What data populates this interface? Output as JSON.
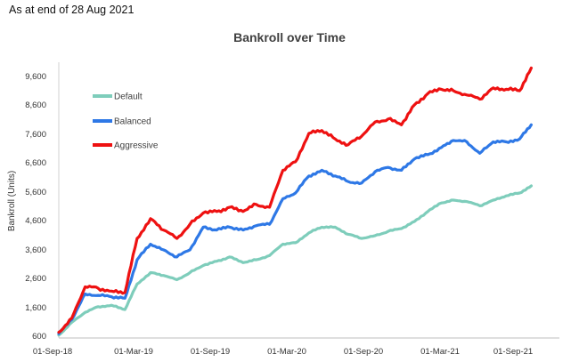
{
  "header": {
    "note": "As at end of 28 Aug 2021"
  },
  "chart_data": {
    "type": "line",
    "title": "Bankroll over Time",
    "xlabel": "",
    "ylabel": "Bankroll (Units)",
    "x_ticks": [
      "01-Sep-18",
      "01-Mar-19",
      "01-Sep-19",
      "01-Mar-20",
      "01-Sep-20",
      "01-Mar-21",
      "01-Sep-21"
    ],
    "y_ticks": [
      600,
      1600,
      2600,
      3600,
      4600,
      5600,
      6600,
      7600,
      8600,
      9600
    ],
    "xlim": [
      "2018-09-01",
      "2021-11-01"
    ],
    "ylim": [
      600,
      10300
    ],
    "grid": false,
    "legend_position": "top-left",
    "x_dates": [
      "2018-09-01",
      "2018-10-01",
      "2018-11-01",
      "2018-12-01",
      "2019-01-01",
      "2019-02-01",
      "2019-03-01",
      "2019-04-01",
      "2019-05-01",
      "2019-06-01",
      "2019-07-01",
      "2019-08-01",
      "2019-09-01",
      "2019-10-01",
      "2019-11-01",
      "2019-12-01",
      "2020-01-01",
      "2020-02-01",
      "2020-03-01",
      "2020-04-01",
      "2020-05-01",
      "2020-06-01",
      "2020-07-01",
      "2020-08-01",
      "2020-09-01",
      "2020-10-01",
      "2020-11-01",
      "2020-12-01",
      "2021-01-01",
      "2021-02-01",
      "2021-03-01",
      "2021-04-01",
      "2021-05-01",
      "2021-06-01",
      "2021-07-01",
      "2021-08-01",
      "2021-08-28"
    ],
    "series": [
      {
        "name": "Default",
        "color": "#7ecdbb",
        "values": [
          700,
          1150,
          1500,
          1700,
          1750,
          1600,
          2500,
          2900,
          2800,
          2650,
          2900,
          3150,
          3300,
          3450,
          3250,
          3350,
          3500,
          3900,
          3950,
          4300,
          4500,
          4500,
          4250,
          4100,
          4200,
          4350,
          4450,
          4700,
          5050,
          5350,
          5450,
          5400,
          5250,
          5450,
          5600,
          5700,
          5950
        ]
      },
      {
        "name": "Balanced",
        "color": "#2e78e6",
        "values": [
          750,
          1250,
          2150,
          2100,
          2050,
          2000,
          3350,
          3900,
          3700,
          3450,
          3700,
          4500,
          4400,
          4500,
          4400,
          4550,
          4600,
          5500,
          5700,
          6300,
          6500,
          6300,
          6100,
          6050,
          6450,
          6600,
          6500,
          6900,
          7050,
          7300,
          7550,
          7500,
          7100,
          7500,
          7500,
          7600,
          8100
        ]
      },
      {
        "name": "Aggressive",
        "color": "#ee1111",
        "values": [
          800,
          1300,
          2400,
          2350,
          2250,
          2200,
          4100,
          4800,
          4400,
          4100,
          4600,
          5000,
          5050,
          5200,
          5050,
          5300,
          5200,
          6500,
          6800,
          7800,
          7900,
          7600,
          7400,
          7700,
          8200,
          8300,
          8100,
          8800,
          9200,
          9350,
          9300,
          9150,
          9000,
          9400,
          9350,
          9300,
          10100
        ]
      }
    ]
  }
}
